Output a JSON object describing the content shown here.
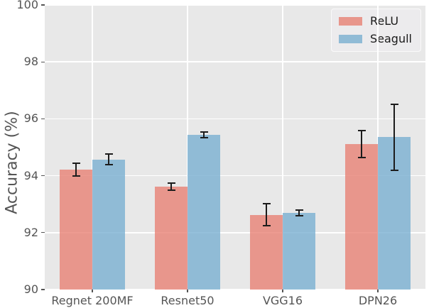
{
  "chart_data": {
    "type": "bar",
    "title": "",
    "xlabel": "",
    "ylabel": "Accuracy (%)",
    "ylim": [
      90,
      100
    ],
    "yticks": [
      90,
      92,
      94,
      96,
      98,
      100
    ],
    "categories": [
      "Regnet 200MF",
      "Resnet50",
      "VGG16",
      "DPN26"
    ],
    "series": [
      {
        "name": "ReLU",
        "color": "#E8968C",
        "fill": "rgba(232,127,114,0.78)",
        "values": [
          94.22,
          93.62,
          92.63,
          95.11
        ],
        "errors": [
          0.25,
          0.15,
          0.41,
          0.5
        ]
      },
      {
        "name": "Seagull",
        "color": "#90BBD6",
        "fill": "rgba(119,174,209,0.78)",
        "values": [
          94.57,
          95.43,
          92.7,
          95.35
        ],
        "errors": [
          0.21,
          0.13,
          0.13,
          1.19
        ]
      }
    ],
    "legend_position": "upper right",
    "grid": true,
    "plot_background": "#E8E8E8",
    "grid_color": "#FFFFFF",
    "tick_color": "#555555",
    "errorbar_color": "#1c1c1c"
  }
}
